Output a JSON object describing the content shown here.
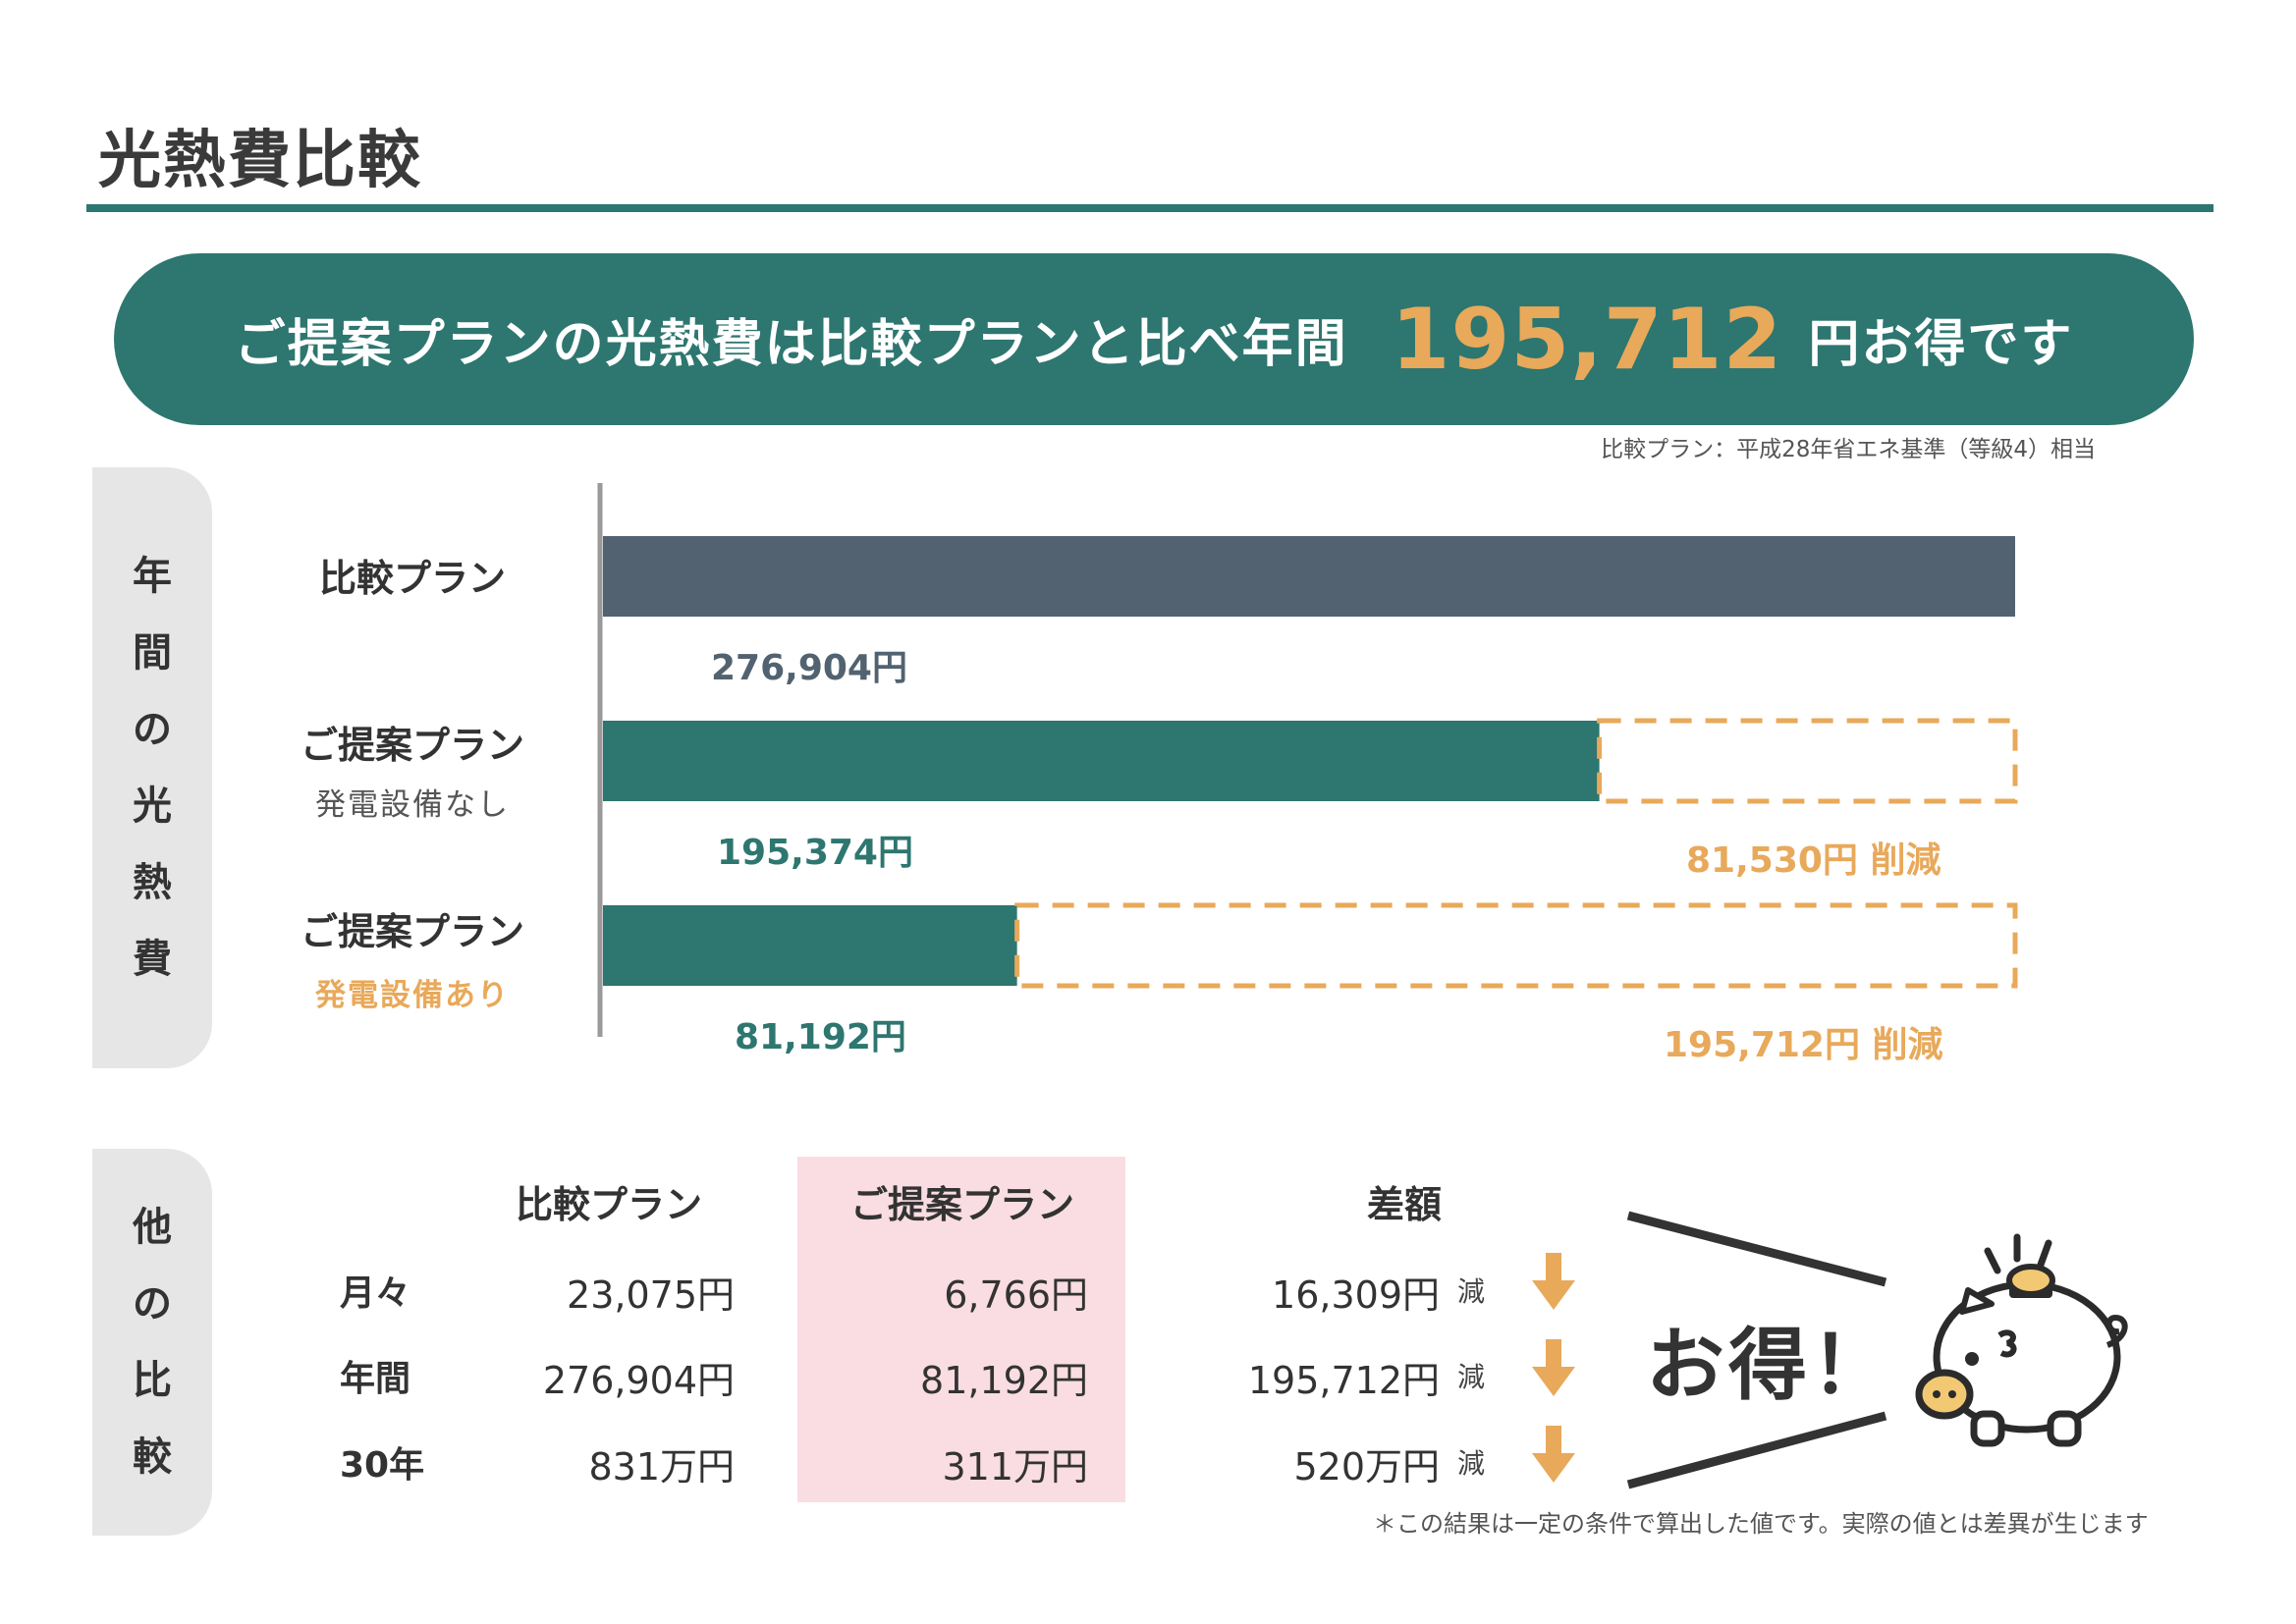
{
  "colors": {
    "teal": "#2e7670",
    "gray_bar": "#526270",
    "orange": "#e8a95a",
    "pink_col": "#f9dde2"
  },
  "header": {
    "title": "光熱費比較"
  },
  "banner": {
    "prefix": "ご提案プランの光熱費は比較プランと比べ年間",
    "amount": "195,712",
    "suffix": "円お得です"
  },
  "note": "比較プラン：平成28年省エネ基準（等級4）相当",
  "annual_section": {
    "side_label": [
      "年",
      "間",
      "の",
      "光",
      "熱",
      "費"
    ]
  },
  "chart_data": {
    "type": "bar",
    "orientation": "horizontal",
    "categories": [
      "比較プラン",
      "ご提案プラン 発電設備なし",
      "ご提案プラン 発電設備あり"
    ],
    "values": [
      276904,
      195374,
      81192
    ],
    "value_labels": [
      "276,904円",
      "195,374円",
      "81,192円"
    ],
    "reductions": [
      null,
      81530,
      195712
    ],
    "reduction_labels": [
      "",
      "81,530円 削減",
      "195,712円 削減"
    ],
    "xlim": [
      0,
      276904
    ],
    "bar_colors": [
      "#526270",
      "#2e7670",
      "#2e7670"
    ],
    "reduction_color": "#e8a95a"
  },
  "plans": {
    "compare": {
      "name": "比較プラン"
    },
    "no_gen": {
      "name": "ご提案プラン",
      "sub": "発電設備なし"
    },
    "with_gen": {
      "name": "ご提案プラン",
      "sub": "発電設備あり"
    }
  },
  "other_section": {
    "side_label": [
      "他",
      "の",
      "比",
      "較"
    ],
    "headers": {
      "compare": "比較プラン",
      "proposal": "ご提案プラン",
      "diff": "差額"
    },
    "rows": [
      {
        "label": "月々",
        "compare": "23,075円",
        "proposal": "6,766円",
        "diff": "16,309円",
        "dec": "減"
      },
      {
        "label": "年間",
        "compare": "276,904円",
        "proposal": "81,192円",
        "diff": "195,712円",
        "dec": "減"
      },
      {
        "label": "30年",
        "compare": "831万円",
        "proposal": "311万円",
        "diff": "520万円",
        "dec": "減"
      }
    ],
    "otoku": "お得！",
    "footnote": "＊この結果は一定の条件で算出した値です。実際の値とは差異が生じます"
  },
  "icons": {
    "arrow": "down-arrow-icon",
    "piggy": "piggy-bank-icon"
  }
}
